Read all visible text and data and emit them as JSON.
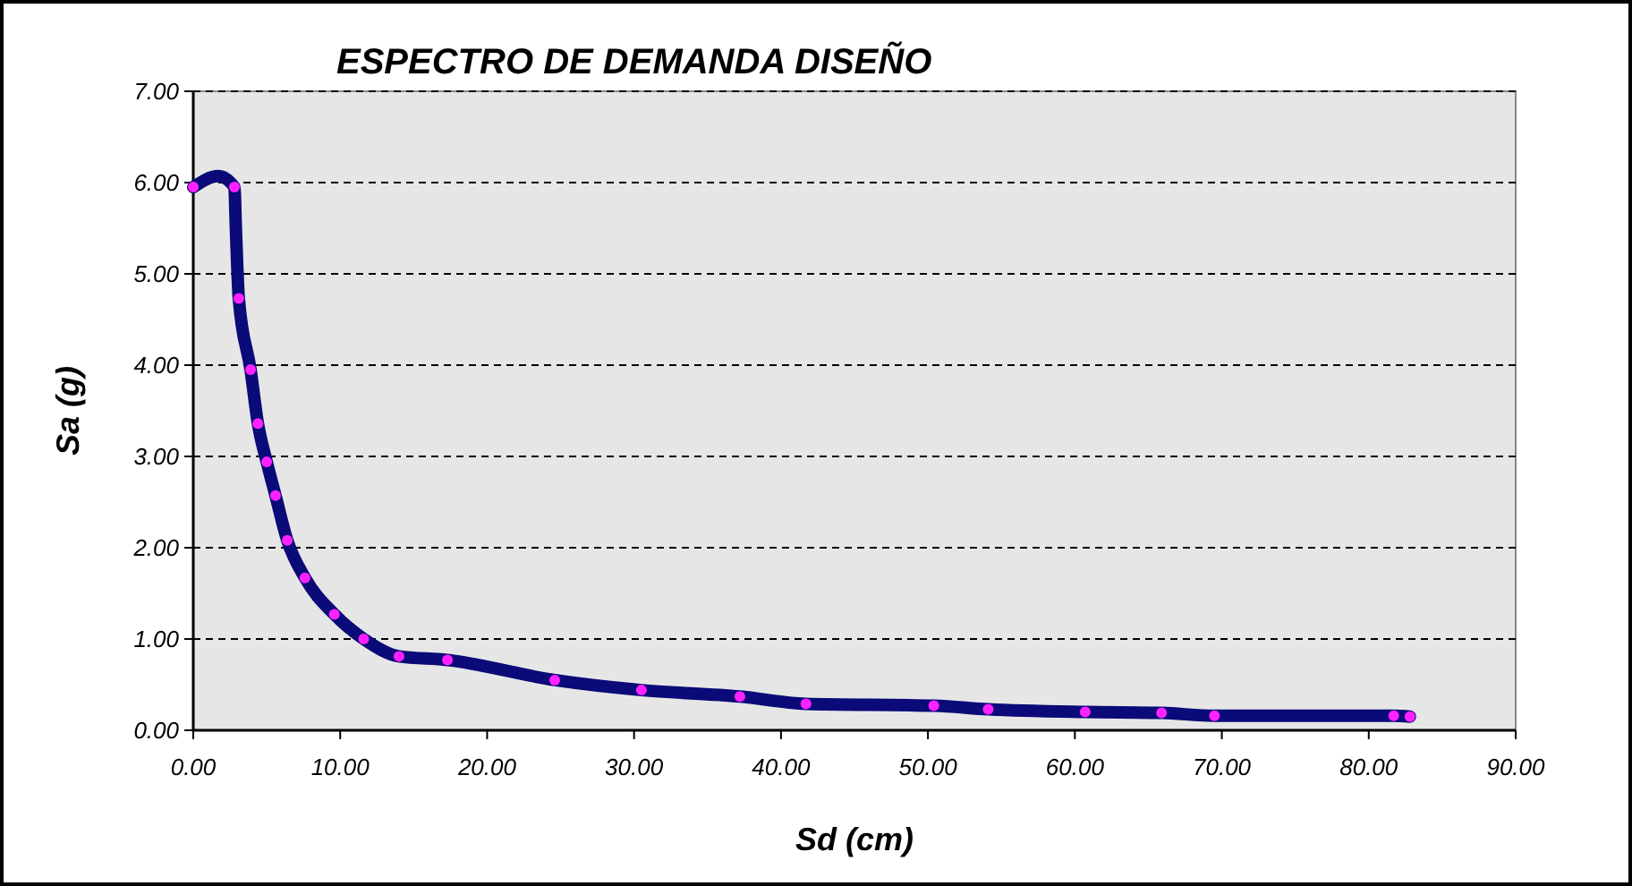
{
  "chart_data": {
    "type": "line",
    "title": "ESPECTRO DE DEMANDA DISEÑO",
    "xlabel": "Sd (cm)",
    "ylabel": "Sa (g)",
    "xlim": [
      0,
      90
    ],
    "ylim": [
      0,
      7
    ],
    "xticks": [
      {
        "value": 0,
        "label": "0.00"
      },
      {
        "value": 10,
        "label": "10.00"
      },
      {
        "value": 20,
        "label": "20.00"
      },
      {
        "value": 30,
        "label": "30.00"
      },
      {
        "value": 40,
        "label": "40.00"
      },
      {
        "value": 50,
        "label": "50.00"
      },
      {
        "value": 60,
        "label": "60.00"
      },
      {
        "value": 70,
        "label": "70.00"
      },
      {
        "value": 80,
        "label": "80.00"
      },
      {
        "value": 90,
        "label": "90.00"
      }
    ],
    "yticks": [
      {
        "value": 0,
        "label": "0.00"
      },
      {
        "value": 1,
        "label": "1.00"
      },
      {
        "value": 2,
        "label": "2.00"
      },
      {
        "value": 3,
        "label": "3.00"
      },
      {
        "value": 4,
        "label": "4.00"
      },
      {
        "value": 5,
        "label": "5.00"
      },
      {
        "value": 6,
        "label": "6.00"
      },
      {
        "value": 7,
        "label": "7.00"
      }
    ],
    "grid": "y",
    "series": [
      {
        "color": "#0a0a78",
        "marker": "none",
        "x": [
          0,
          1.7,
          2.8,
          2.9,
          3.1,
          3.9,
          4.4,
          5.0,
          5.6,
          6.4,
          7.6,
          9.6,
          11.6,
          14.0,
          17.3,
          24.6,
          30.5,
          37.2,
          41.7,
          50.4,
          54.1,
          60.7,
          65.9,
          69.5,
          81.7,
          82.8
        ],
        "values": [
          5.95,
          6.07,
          5.95,
          5.5,
          4.73,
          3.95,
          3.36,
          2.94,
          2.57,
          2.08,
          1.67,
          1.27,
          1.0,
          0.81,
          0.77,
          0.55,
          0.44,
          0.37,
          0.29,
          0.27,
          0.23,
          0.2,
          0.19,
          0.16,
          0.16,
          0.15
        ]
      },
      {
        "type": "scatter",
        "color": "#ff22ff",
        "marker": "circle",
        "x": [
          0,
          2.8,
          3.1,
          3.9,
          4.4,
          5.0,
          5.6,
          6.4,
          7.6,
          9.6,
          11.6,
          14.0,
          17.3,
          24.6,
          30.5,
          37.2,
          41.7,
          50.4,
          54.1,
          60.7,
          65.9,
          69.5,
          81.7,
          82.8
        ],
        "values": [
          5.95,
          5.95,
          4.73,
          3.95,
          3.36,
          2.94,
          2.57,
          2.08,
          1.67,
          1.27,
          1.0,
          0.81,
          0.77,
          0.55,
          0.44,
          0.37,
          0.29,
          0.27,
          0.23,
          0.2,
          0.19,
          0.16,
          0.16,
          0.15
        ]
      }
    ]
  }
}
